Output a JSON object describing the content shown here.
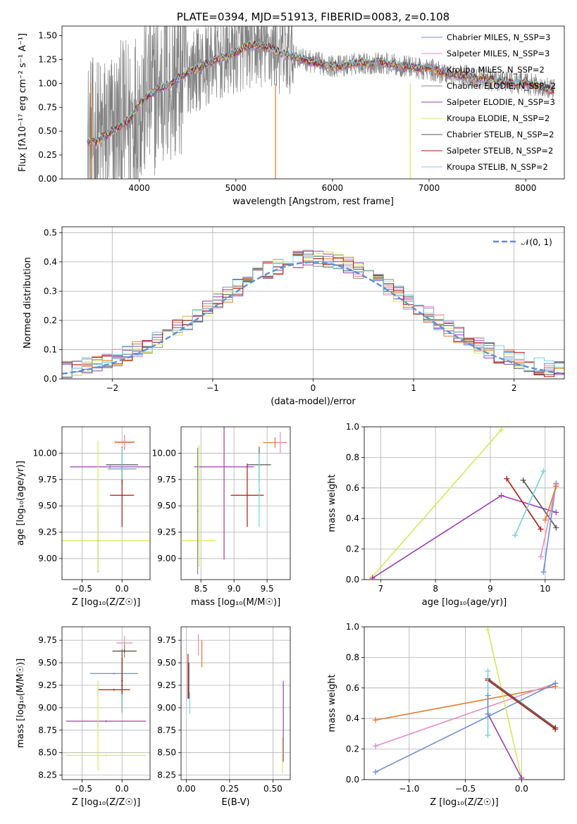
{
  "colors": {
    "Chabrier MILES": "#6a8fd8",
    "Salpeter MILES": "#e88bc3",
    "Kroupa MILES": "#e07b2a",
    "Chabrier ELODIE": "#888888",
    "Salpeter ELODIE": "#9b3db5",
    "Kroupa ELODIE": "#d8e85a",
    "Chabrier STELIB": "#555555",
    "Salpeter STELIB": "#b3150f",
    "Kroupa STELIB": "#74d4e0"
  },
  "chart_data": [
    {
      "id": "spectrum",
      "type": "line",
      "title": "PLATE=0394, MJD=51913, FIBERID=0083, z=0.108",
      "xlabel": "wavelength [Angstrom, rest frame]",
      "ylabel": "Flux [fλ10⁻¹⁷ erg cm⁻² s⁻¹ A⁻¹]",
      "xlim": [
        3200,
        8400
      ],
      "ylim": [
        0,
        1.6
      ],
      "xticks": [
        4000,
        5000,
        6000,
        7000,
        8000
      ],
      "yticks": [
        0.0,
        0.25,
        0.5,
        0.75,
        1.0,
        1.25,
        1.5
      ],
      "legend_position": "upper-right",
      "legend": [
        "Chabrier MILES, N_SSP=3",
        "Salpeter MILES, N_SSP=3",
        "Kroupa MILES, N_SSP=2",
        "Chabrier ELODIE, N_SSP=2",
        "Salpeter ELODIE, N_SSP=3",
        "Kroupa ELODIE, N_SSP=2",
        "Chabrier STELIB, N_SSP=2",
        "Salpeter STELIB, N_SSP=2",
        "Kroupa STELIB, N_SSP=2"
      ],
      "legend_series": [
        "Chabrier MILES",
        "Salpeter MILES",
        "Kroupa MILES",
        "Chabrier ELODIE",
        "Salpeter ELODIE",
        "Kroupa ELODIE",
        "Chabrier STELIB",
        "Salpeter STELIB",
        "Kroupa STELIB"
      ],
      "model_continuum": {
        "x": [
          3450,
          3550,
          3700,
          3800,
          3900,
          4000,
          4100,
          4200,
          4300,
          4400,
          4500,
          4600,
          4700,
          4800,
          4900,
          5000,
          5100,
          5200,
          5300,
          5400,
          5500,
          5600,
          5700,
          5800,
          5900,
          6000,
          6100,
          6200,
          6300,
          6400,
          6500,
          6600,
          6700,
          6800,
          6900,
          7000,
          7100,
          7200,
          7300,
          7400,
          7500,
          7600,
          7700,
          7800,
          7900,
          8000,
          8100,
          8200,
          8300
        ],
        "y": [
          0.4,
          0.38,
          0.48,
          0.55,
          0.62,
          0.78,
          0.88,
          0.95,
          0.98,
          1.05,
          1.12,
          1.15,
          1.2,
          1.25,
          1.28,
          1.32,
          1.38,
          1.4,
          1.38,
          1.35,
          1.3,
          1.28,
          1.25,
          1.22,
          1.2,
          1.18,
          1.18,
          1.2,
          1.22,
          1.2,
          1.22,
          1.2,
          1.18,
          1.18,
          1.15,
          1.15,
          1.12,
          1.1,
          1.08,
          1.08,
          1.05,
          1.05,
          1.02,
          1.02,
          1.0,
          1.0,
          0.98,
          0.95,
          0.92
        ]
      }
    },
    {
      "id": "residuals",
      "type": "line",
      "xlabel": "(data-model)/error",
      "ylabel": "Normed distribution",
      "xlim": [
        -2.5,
        2.5
      ],
      "ylim": [
        0,
        0.52
      ],
      "xticks": [
        -2,
        -1,
        0,
        1,
        2
      ],
      "yticks": [
        0.0,
        0.1,
        0.2,
        0.3,
        0.4,
        0.5
      ],
      "legend_position": "upper-right",
      "legend": [
        "𝒩(0, 1)"
      ],
      "reference_curve": "standard normal pdf",
      "histogram_bin_width": 0.1
    },
    {
      "id": "age_vs_Z",
      "type": "scatter",
      "xlabel": "Z [log₁₀(Z/Z☉)]",
      "ylabel": "age  [log₁₀(age/yr)]",
      "xlim": [
        -0.75,
        0.35
      ],
      "ylim": [
        8.8,
        10.25
      ],
      "xticks": [
        -0.5,
        0.0
      ],
      "yticks": [
        9.0,
        9.25,
        9.5,
        9.75,
        10.0
      ],
      "errorbars": [
        {
          "s": "Kroupa MILES",
          "x": 0.03,
          "y": 10.1,
          "xerr": 0.12,
          "yerr": 0.07
        },
        {
          "s": "Salpeter MILES",
          "x": 0.03,
          "y": 10.11,
          "xerr": 0.13,
          "yerr": 0.05
        },
        {
          "s": "Chabrier MILES",
          "x": 0.0,
          "y": 9.85,
          "xerr": 0.18,
          "yerr": 0.15
        },
        {
          "s": "Chabrier STELIB",
          "x": 0.0,
          "y": 9.89,
          "xerr": 0.2,
          "yerr": 0.17
        },
        {
          "s": "Salpeter ELODIE",
          "x": -0.15,
          "y": 9.87,
          "xerr": 0.5,
          "yerr": 0.01
        },
        {
          "s": "Salpeter STELIB",
          "x": 0.0,
          "y": 9.6,
          "xerr": 0.15,
          "yerr": 0.3
        },
        {
          "s": "Kroupa STELIB",
          "x": 0.0,
          "y": 9.9,
          "xerr": 0.01,
          "yerr": 0.15
        },
        {
          "s": "Kroupa ELODIE",
          "x": -0.3,
          "y": 9.17,
          "xerr": 0.64,
          "yerr": 0.01
        },
        {
          "s": "Chabrier ELODIE",
          "x": -0.3,
          "y": 9.17,
          "xerr": 0.01,
          "yerr": 0.3
        },
        {
          "s": "Kroupa ELODIE",
          "x": -0.3,
          "y": 9.5,
          "xerr": 0.01,
          "yerr": 0.62
        }
      ]
    },
    {
      "id": "age_vs_mass",
      "type": "scatter",
      "xlabel": "mass [log₁₀(M/M☉)]",
      "ylabel": "",
      "xlim": [
        8.2,
        9.85
      ],
      "ylim": [
        8.8,
        10.25
      ],
      "xticks": [
        8.5,
        9.0,
        9.5
      ],
      "yticks": [
        9.0,
        9.25,
        9.5,
        9.75,
        10.0
      ],
      "errorbars": [
        {
          "s": "Kroupa MILES",
          "x": 9.62,
          "y": 10.1,
          "xerr": 0.18,
          "yerr": 0.05
        },
        {
          "s": "Salpeter MILES",
          "x": 9.7,
          "y": 10.1,
          "xerr": 0.05,
          "yerr": 0.1
        },
        {
          "s": "Chabrier STELIB",
          "x": 9.38,
          "y": 9.89,
          "xerr": 0.18,
          "yerr": 0.17
        },
        {
          "s": "Salpeter ELODIE",
          "x": 8.85,
          "y": 9.87,
          "xerr": 0.45,
          "yerr": 0.88
        },
        {
          "s": "Salpeter STELIB",
          "x": 9.2,
          "y": 9.6,
          "xerr": 0.25,
          "yerr": 0.3
        },
        {
          "s": "Kroupa STELIB",
          "x": 9.38,
          "y": 9.65,
          "xerr": 0.01,
          "yerr": 0.35
        },
        {
          "s": "Kroupa ELODIE",
          "x": 8.47,
          "y": 9.17,
          "xerr": 0.25,
          "yerr": 0.01
        },
        {
          "s": "Kroupa ELODIE",
          "x": 8.47,
          "y": 9.5,
          "xerr": 0.01,
          "yerr": 0.58
        },
        {
          "s": "Chabrier ELODIE",
          "x": 8.45,
          "y": 9.45,
          "xerr": 0.01,
          "yerr": 0.6
        }
      ]
    },
    {
      "id": "weight_vs_age",
      "type": "line",
      "xlabel": "age  [log₁₀(age/yr)]",
      "ylabel": "mass weight",
      "xlim": [
        6.7,
        10.35
      ],
      "ylim": [
        0,
        1.0
      ],
      "xticks": [
        7,
        8,
        9,
        10
      ],
      "yticks": [
        0.0,
        0.2,
        0.4,
        0.6,
        0.8,
        1.0
      ],
      "grid": true,
      "series": [
        {
          "s": "Kroupa ELODIE",
          "x": [
            6.85,
            9.2
          ],
          "y": [
            0.02,
            0.98
          ]
        },
        {
          "s": "Salpeter ELODIE",
          "x": [
            6.85,
            9.2,
            10.2
          ],
          "y": [
            0.01,
            0.55,
            0.44
          ]
        },
        {
          "s": "Salpeter STELIB",
          "x": [
            9.3,
            9.92
          ],
          "y": [
            0.66,
            0.33
          ]
        },
        {
          "s": "Chabrier STELIB",
          "x": [
            9.6,
            10.2
          ],
          "y": [
            0.65,
            0.34
          ]
        },
        {
          "s": "Kroupa STELIB",
          "x": [
            9.45,
            9.97
          ],
          "y": [
            0.29,
            0.71
          ]
        },
        {
          "s": "Chabrier MILES",
          "x": [
            9.97,
            10.2
          ],
          "y": [
            0.05,
            0.63
          ]
        },
        {
          "s": "Salpeter MILES",
          "x": [
            9.92,
            10.2
          ],
          "y": [
            0.15,
            0.62
          ]
        },
        {
          "s": "Kroupa MILES",
          "x": [
            10.0,
            10.2
          ],
          "y": [
            0.39,
            0.61
          ]
        }
      ]
    },
    {
      "id": "mass_vs_Z",
      "type": "scatter",
      "xlabel": "Z [log₁₀(Z/Z☉)]",
      "ylabel": "mass [log₁₀(M/M☉)]",
      "xlim": [
        -0.75,
        0.35
      ],
      "ylim": [
        8.2,
        9.9
      ],
      "xticks": [
        -0.5,
        0.0
      ],
      "yticks": [
        8.25,
        8.5,
        8.75,
        9.0,
        9.25,
        9.5,
        9.75
      ],
      "errorbars": [
        {
          "s": "Salpeter MILES",
          "x": 0.03,
          "y": 9.72,
          "xerr": 0.1,
          "yerr": 0.08
        },
        {
          "s": "Kroupa MILES",
          "x": 0.03,
          "y": 9.63,
          "xerr": 0.15,
          "yerr": 0.07
        },
        {
          "s": "Chabrier STELIB",
          "x": 0.03,
          "y": 9.63,
          "xerr": 0.15,
          "yerr": 0.02
        },
        {
          "s": "Chabrier MILES",
          "x": -0.1,
          "y": 9.38,
          "xerr": 0.3,
          "yerr": 0.01
        },
        {
          "s": "Salpeter STELIB",
          "x": -0.1,
          "y": 9.2,
          "xerr": 0.2,
          "yerr": 0.01
        },
        {
          "s": "Chabrier STELIB",
          "x": 0.0,
          "y": 9.3,
          "xerr": 0.01,
          "yerr": 0.35
        },
        {
          "s": "Salpeter STELIB",
          "x": 0.0,
          "y": 9.25,
          "xerr": 0.01,
          "yerr": 0.3
        },
        {
          "s": "Kroupa STELIB",
          "x": 0.0,
          "y": 9.05,
          "xerr": 0.01,
          "yerr": 0.1
        },
        {
          "s": "Salpeter ELODIE",
          "x": -0.2,
          "y": 8.85,
          "xerr": 0.5,
          "yerr": 0.01
        },
        {
          "s": "Kroupa ELODIE",
          "x": -0.2,
          "y": 8.47,
          "xerr": 0.5,
          "yerr": 0.01
        },
        {
          "s": "Kroupa ELODIE",
          "x": -0.3,
          "y": 8.8,
          "xerr": 0.01,
          "yerr": 0.5
        }
      ]
    },
    {
      "id": "mass_vs_ebv",
      "type": "scatter",
      "xlabel": "E(B-V)",
      "ylabel": "",
      "xlim": [
        -0.03,
        0.6
      ],
      "ylim": [
        8.2,
        9.9
      ],
      "xticks": [
        0.0,
        0.25,
        0.5
      ],
      "yticks": [
        8.25,
        8.5,
        8.75,
        9.0,
        9.25,
        9.5,
        9.75
      ],
      "errorbars": [
        {
          "s": "Salpeter MILES",
          "x": 0.07,
          "y": 9.7,
          "xerr": 0.0,
          "yerr": 0.12
        },
        {
          "s": "Kroupa MILES",
          "x": 0.09,
          "y": 9.6,
          "xerr": 0.0,
          "yerr": 0.15
        },
        {
          "s": "Salpeter STELIB",
          "x": 0.01,
          "y": 9.35,
          "xerr": 0.0,
          "yerr": 0.25
        },
        {
          "s": "Chabrier STELIB",
          "x": 0.015,
          "y": 9.3,
          "xerr": 0.0,
          "yerr": 0.2
        },
        {
          "s": "Kroupa STELIB",
          "x": 0.02,
          "y": 9.05,
          "xerr": 0.0,
          "yerr": 0.12
        },
        {
          "s": "Salpeter ELODIE",
          "x": 0.56,
          "y": 8.85,
          "xerr": 0.0,
          "yerr": 0.45
        },
        {
          "s": "Kroupa ELODIE",
          "x": 0.555,
          "y": 8.47,
          "xerr": 0.0,
          "yerr": 0.2
        }
      ]
    },
    {
      "id": "weight_vs_Z",
      "type": "line",
      "xlabel": "Z [log₁₀(Z/Z☉)]",
      "ylabel": "mass weight",
      "xlim": [
        -1.4,
        0.38
      ],
      "ylim": [
        0,
        1.0
      ],
      "xticks": [
        -1.0,
        -0.5,
        0.0
      ],
      "yticks": [
        0.0,
        0.2,
        0.4,
        0.6,
        0.8,
        1.0
      ],
      "grid": true,
      "series": [
        {
          "s": "Kroupa MILES",
          "x": [
            -1.3,
            0.3
          ],
          "y": [
            0.39,
            0.61
          ]
        },
        {
          "s": "Salpeter MILES",
          "x": [
            -1.3,
            0.3
          ],
          "y": [
            0.22,
            0.63
          ]
        },
        {
          "s": "Chabrier MILES",
          "x": [
            -1.3,
            0.3
          ],
          "y": [
            0.05,
            0.63
          ]
        },
        {
          "s": "Kroupa ELODIE",
          "x": [
            -0.3,
            0.0
          ],
          "y": [
            0.98,
            0.01
          ]
        },
        {
          "s": "Salpeter ELODIE",
          "x": [
            -0.3,
            0.0
          ],
          "y": [
            0.43,
            0.01
          ]
        },
        {
          "s": "Chabrier STELIB",
          "x": [
            -0.3,
            0.3
          ],
          "y": [
            0.66,
            0.34
          ]
        },
        {
          "s": "Salpeter STELIB",
          "x": [
            -0.3,
            0.3
          ],
          "y": [
            0.65,
            0.33
          ]
        },
        {
          "s": "Kroupa STELIB",
          "x": [
            -0.3,
            -0.3
          ],
          "y": [
            0.29,
            0.71
          ]
        },
        {
          "s": "Chabrier MILES",
          "x": [
            -0.3,
            -0.3
          ],
          "y": [
            0.43,
            0.55
          ]
        }
      ]
    }
  ]
}
